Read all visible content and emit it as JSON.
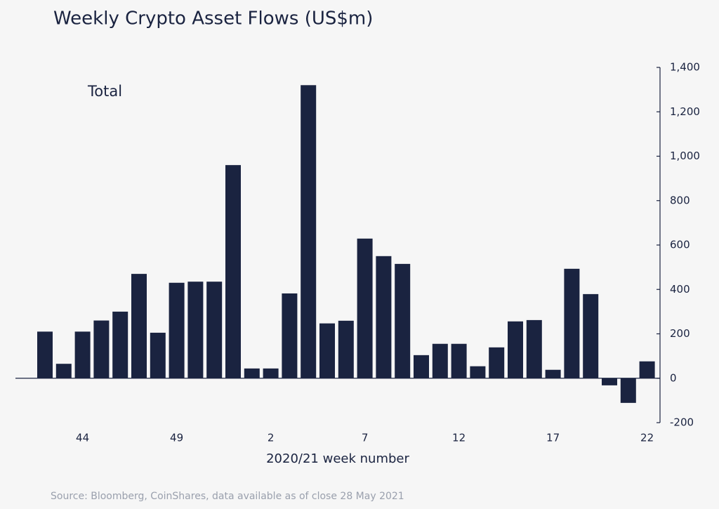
{
  "chart_data": {
    "type": "bar",
    "title": "Weekly Crypto Asset Flows (US$m)",
    "annotation": "Total",
    "x_label": "2020/21 week number",
    "source": "Source: Bloomberg, CoinShares, data available as of close 28 May 2021",
    "categories": [
      null,
      null,
      "44",
      null,
      null,
      null,
      null,
      "49",
      null,
      null,
      null,
      null,
      "2",
      null,
      null,
      null,
      null,
      "7",
      null,
      null,
      null,
      null,
      "12",
      null,
      null,
      null,
      null,
      "17",
      null,
      null,
      null,
      null,
      "22"
    ],
    "values": [
      210,
      65,
      210,
      260,
      300,
      470,
      205,
      430,
      435,
      435,
      960,
      44,
      44,
      382,
      1320,
      247,
      259,
      629,
      550,
      515,
      104,
      155,
      155,
      54,
      139,
      256,
      262,
      38,
      493,
      379,
      -32,
      -111,
      76
    ],
    "color": "#1a2340",
    "ylim": [
      -200,
      1400
    ],
    "yticks": [
      -200,
      0,
      200,
      400,
      600,
      800,
      {
        "value": 1000,
        "label": "1,000"
      },
      {
        "value": 1200,
        "label": "1,200"
      },
      {
        "value": 1400,
        "label": "1,400"
      }
    ]
  }
}
